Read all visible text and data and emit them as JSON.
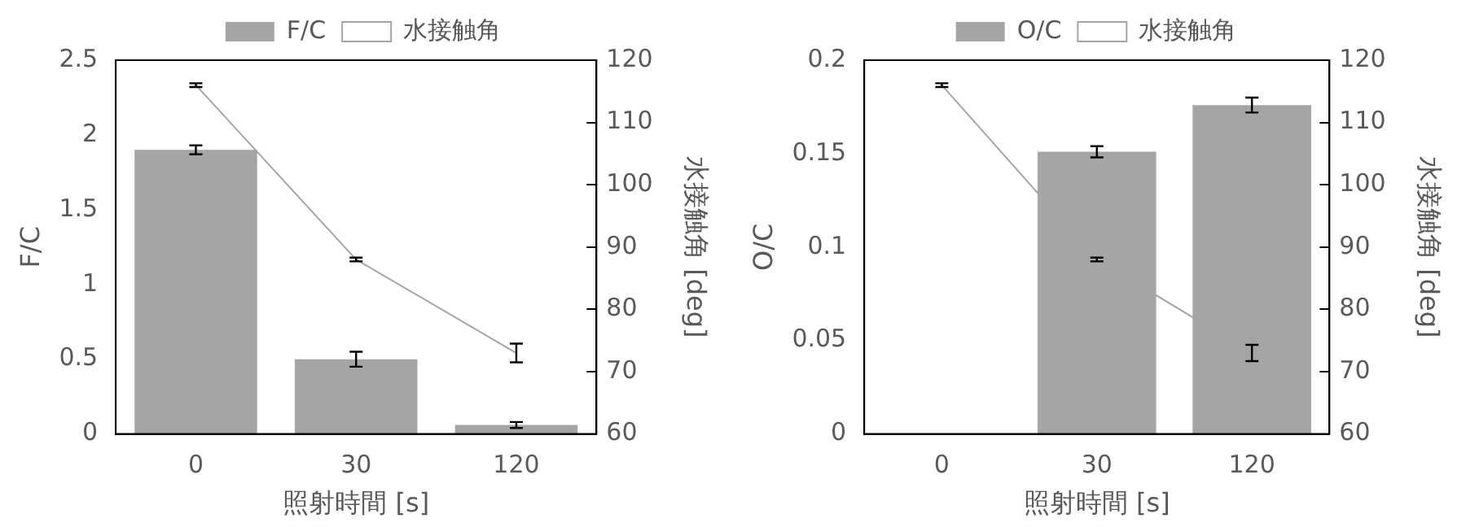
{
  "chart_data": [
    {
      "type": "bar",
      "categories": [
        "0",
        "30",
        "120"
      ],
      "xlabel": "照射時間 [s]",
      "ylabel": "F/C",
      "y2label": "水接触角 [deg]",
      "ylim": [
        0,
        2.5
      ],
      "yticks": [
        0,
        0.5,
        1,
        1.5,
        2,
        2.5
      ],
      "y2lim": [
        60,
        120
      ],
      "y2ticks": [
        60,
        70,
        80,
        90,
        100,
        110,
        120
      ],
      "grid": false,
      "legend": "top",
      "marker": "none",
      "series": [
        {
          "name": "F/C",
          "color": "#a5a5a5",
          "values": [
            1.9,
            0.5,
            0.06
          ],
          "errors": [
            0.03,
            0.05,
            0.02
          ]
        },
        {
          "name": "水接触角",
          "type": "line",
          "axis": "y2",
          "color": "#a5a5a5",
          "values": [
            116,
            88,
            73
          ],
          "errors": [
            0.3,
            0.3,
            1.5
          ]
        }
      ]
    },
    {
      "type": "bar",
      "categories": [
        "0",
        "30",
        "120"
      ],
      "xlabel": "照射時間 [s]",
      "ylabel": "O/C",
      "y2label": "水接触角 [deg]",
      "ylim": [
        0,
        0.2
      ],
      "yticks": [
        0,
        0.05,
        0.1,
        0.15,
        0.2
      ],
      "y2lim": [
        60,
        120
      ],
      "y2ticks": [
        60,
        70,
        80,
        90,
        100,
        110,
        120
      ],
      "grid": false,
      "legend": "top",
      "marker": "none",
      "series": [
        {
          "name": "O/C",
          "color": "#a5a5a5",
          "values": [
            0,
            0.151,
            0.176
          ],
          "errors": [
            null,
            0.003,
            0.004
          ]
        },
        {
          "name": "水接触角",
          "type": "line",
          "axis": "y2",
          "color": "#a5a5a5",
          "values": [
            116,
            88,
            73
          ],
          "errors": [
            0.3,
            0.3,
            1.3
          ]
        }
      ]
    }
  ]
}
